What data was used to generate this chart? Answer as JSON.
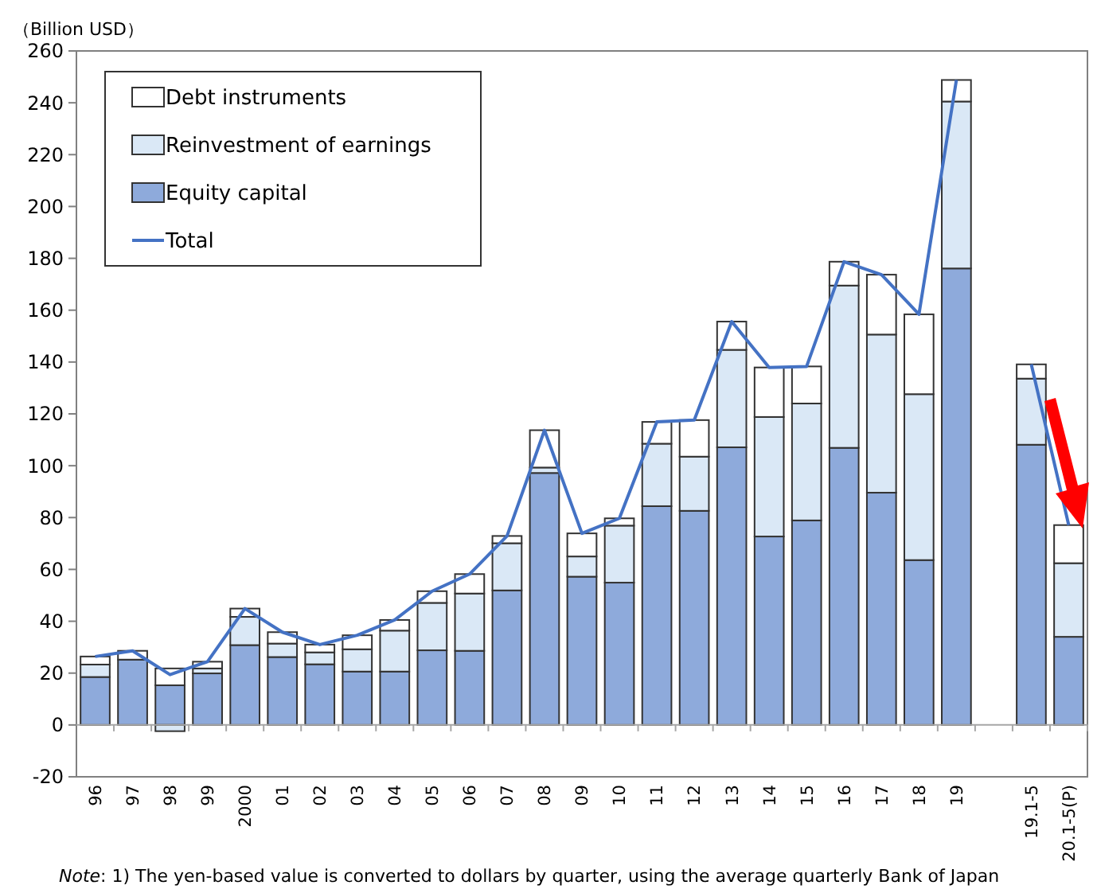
{
  "chart_data": {
    "type": "bar",
    "stacked": true,
    "ylabel": "（Billion USD）",
    "categories": [
      "96",
      "97",
      "98",
      "99",
      "2000",
      "01",
      "02",
      "03",
      "04",
      "05",
      "06",
      "07",
      "08",
      "09",
      "10",
      "11",
      "12",
      "13",
      "14",
      "15",
      "16",
      "17",
      "18",
      "19",
      null,
      "19.1-5",
      "20.1-5(P)"
    ],
    "series": [
      {
        "name": "Equity capital",
        "color": "#8eaadb",
        "values": [
          18.5,
          25.2,
          15.3,
          19.9,
          30.8,
          26.2,
          23.4,
          20.6,
          20.6,
          28.8,
          28.6,
          51.9,
          97.2,
          57.2,
          54.9,
          84.4,
          82.6,
          107.1,
          72.7,
          78.9,
          106.9,
          89.6,
          63.6,
          176.1,
          null,
          108.1,
          34.0
        ]
      },
      {
        "name": "Reinvestment of earnings",
        "color": "#dae8f6",
        "values": [
          4.8,
          null,
          -2.4,
          1.9,
          10.9,
          5.2,
          4.6,
          8.6,
          15.8,
          18.3,
          22.1,
          18.2,
          2.1,
          7.8,
          22.0,
          24.1,
          20.9,
          37.6,
          46.1,
          45.1,
          62.6,
          61.0,
          64.0,
          64.4,
          null,
          25.5,
          28.4
        ]
      },
      {
        "name": "Debt instruments",
        "color": "#ffffff",
        "values": [
          3.1,
          3.4,
          6.5,
          2.6,
          3.2,
          4.4,
          3.0,
          5.4,
          4.1,
          4.5,
          7.5,
          2.8,
          14.4,
          8.9,
          2.8,
          8.4,
          14.1,
          10.9,
          19.1,
          14.3,
          9.2,
          23.1,
          30.8,
          8.3,
          null,
          5.5,
          14.7
        ]
      },
      {
        "name": "Total",
        "type": "line",
        "color": "#4472c4",
        "values": [
          26.4,
          28.6,
          19.4,
          24.4,
          44.9,
          35.8,
          31.0,
          34.6,
          40.5,
          51.6,
          58.2,
          72.9,
          113.7,
          73.9,
          79.7,
          116.9,
          117.6,
          155.6,
          137.9,
          138.3,
          178.7,
          173.7,
          158.4,
          248.8,
          null,
          139.1,
          77.1
        ]
      }
    ],
    "ylim": [
      -20,
      260
    ],
    "yticks": [
      -20,
      0,
      20,
      40,
      60,
      80,
      100,
      120,
      140,
      160,
      180,
      200,
      220,
      240,
      260
    ],
    "legend": "top left",
    "annotations": [
      "Note: 1) The yen-based value is converted to dollars by quarter, using the average quarterly Bank of Japan"
    ]
  }
}
